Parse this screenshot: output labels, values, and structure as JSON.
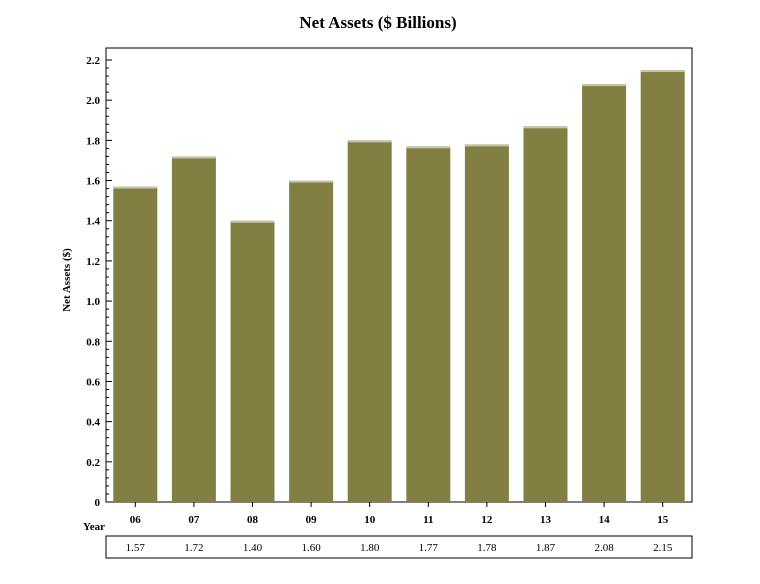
{
  "chart_data": {
    "type": "bar",
    "title": "Net Assets ($ Billions)",
    "xlabel": "Year",
    "ylabel": "Net Assets ($)",
    "categories": [
      "06",
      "07",
      "08",
      "09",
      "10",
      "11",
      "12",
      "13",
      "14",
      "15"
    ],
    "values": [
      1.57,
      1.72,
      1.4,
      1.6,
      1.8,
      1.77,
      1.78,
      1.87,
      2.08,
      2.15
    ],
    "value_labels": [
      "1.57",
      "1.72",
      "1.40",
      "1.60",
      "1.80",
      "1.77",
      "1.78",
      "1.87",
      "2.08",
      "2.15"
    ],
    "yticks": [
      "0",
      "0.2",
      "0.4",
      "0.6",
      "0.8",
      "1.0",
      "1.2",
      "1.4",
      "1.6",
      "1.8",
      "2.0",
      "2.2"
    ],
    "ylim": [
      0,
      2.2
    ],
    "grid": false,
    "legend": "none",
    "colors": {
      "bar": "#827f42",
      "bar_top": "#c8c6a2",
      "axis": "#000000"
    }
  }
}
